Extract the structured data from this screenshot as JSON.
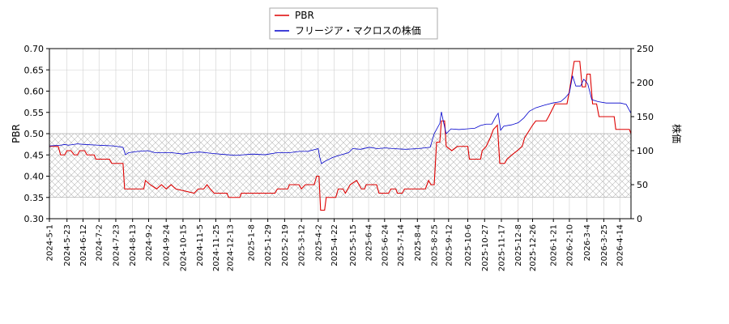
{
  "chart_data": {
    "type": "line",
    "ylabel_left": "PBR",
    "ylabel_right": "株価",
    "ylim_left": [
      0.3,
      0.7
    ],
    "ylim_right": [
      0,
      250
    ],
    "yticks_left": [
      "0.30",
      "0.35",
      "0.40",
      "0.45",
      "0.50",
      "0.55",
      "0.60",
      "0.65",
      "0.70"
    ],
    "yticks_right": [
      "0",
      "50",
      "100",
      "150",
      "200",
      "250"
    ],
    "xlim": [
      "2024-05-01",
      "2026-04-28"
    ],
    "xticks": [
      "2024-5-1",
      "2024-5-23",
      "2024-6-12",
      "2024-7-2",
      "2024-7-23",
      "2024-8-13",
      "2024-9-2",
      "2024-9-24",
      "2024-10-15",
      "2024-11-5",
      "2024-11-25",
      "2024-12-13",
      "2025-1-8",
      "2025-1-29",
      "2025-2-19",
      "2025-3-12",
      "2025-4-2",
      "2025-4-22",
      "2025-5-15",
      "2025-6-4",
      "2025-6-24",
      "2025-7-14",
      "2025-8-4",
      "2025-8-25",
      "2025-9-12",
      "2025-10-6",
      "2025-10-27",
      "2025-11-17",
      "2025-12-8",
      "2025-12-26",
      "2026-1-21",
      "2026-2-10",
      "2026-3-4",
      "2026-3-25",
      "2026-4-14"
    ],
    "hatched_band": [
      0.35,
      0.5
    ],
    "grid": true,
    "legend_position": "top-center",
    "series": [
      {
        "name": "PBR",
        "axis": "left",
        "color": "#dd0000",
        "points": [
          [
            "2024-05-01",
            0.47
          ],
          [
            "2024-05-12",
            0.47
          ],
          [
            "2024-05-15",
            0.45
          ],
          [
            "2024-05-20",
            0.45
          ],
          [
            "2024-05-23",
            0.46
          ],
          [
            "2024-05-28",
            0.46
          ],
          [
            "2024-06-01",
            0.45
          ],
          [
            "2024-06-05",
            0.45
          ],
          [
            "2024-06-08",
            0.46
          ],
          [
            "2024-06-14",
            0.46
          ],
          [
            "2024-06-17",
            0.45
          ],
          [
            "2024-06-26",
            0.45
          ],
          [
            "2024-06-28",
            0.44
          ],
          [
            "2024-07-15",
            0.44
          ],
          [
            "2024-07-18",
            0.43
          ],
          [
            "2024-08-01",
            0.43
          ],
          [
            "2024-08-03",
            0.37
          ],
          [
            "2024-08-27",
            0.37
          ],
          [
            "2024-08-29",
            0.39
          ],
          [
            "2024-09-04",
            0.38
          ],
          [
            "2024-09-12",
            0.37
          ],
          [
            "2024-09-18",
            0.38
          ],
          [
            "2024-09-24",
            0.37
          ],
          [
            "2024-09-30",
            0.38
          ],
          [
            "2024-10-06",
            0.37
          ],
          [
            "2024-10-29",
            0.36
          ],
          [
            "2024-11-03",
            0.37
          ],
          [
            "2024-11-10",
            0.37
          ],
          [
            "2024-11-14",
            0.38
          ],
          [
            "2024-11-18",
            0.37
          ],
          [
            "2024-11-23",
            0.36
          ],
          [
            "2024-12-09",
            0.36
          ],
          [
            "2024-12-11",
            0.35
          ],
          [
            "2024-12-25",
            0.35
          ],
          [
            "2024-12-27",
            0.36
          ],
          [
            "2025-02-07",
            0.36
          ],
          [
            "2025-02-10",
            0.37
          ],
          [
            "2025-02-23",
            0.37
          ],
          [
            "2025-02-25",
            0.38
          ],
          [
            "2025-03-09",
            0.38
          ],
          [
            "2025-03-12",
            0.37
          ],
          [
            "2025-03-17",
            0.38
          ],
          [
            "2025-03-28",
            0.38
          ],
          [
            "2025-03-31",
            0.4
          ],
          [
            "2025-04-03",
            0.4
          ],
          [
            "2025-04-05",
            0.32
          ],
          [
            "2025-04-10",
            0.32
          ],
          [
            "2025-04-12",
            0.35
          ],
          [
            "2025-04-24",
            0.35
          ],
          [
            "2025-04-27",
            0.37
          ],
          [
            "2025-05-03",
            0.37
          ],
          [
            "2025-05-06",
            0.36
          ],
          [
            "2025-05-12",
            0.38
          ],
          [
            "2025-05-20",
            0.39
          ],
          [
            "2025-05-26",
            0.37
          ],
          [
            "2025-05-30",
            0.37
          ],
          [
            "2025-06-01",
            0.38
          ],
          [
            "2025-06-14",
            0.38
          ],
          [
            "2025-06-17",
            0.36
          ],
          [
            "2025-06-29",
            0.36
          ],
          [
            "2025-07-02",
            0.37
          ],
          [
            "2025-07-08",
            0.37
          ],
          [
            "2025-07-10",
            0.36
          ],
          [
            "2025-07-16",
            0.36
          ],
          [
            "2025-07-19",
            0.37
          ],
          [
            "2025-08-14",
            0.37
          ],
          [
            "2025-08-18",
            0.39
          ],
          [
            "2025-08-21",
            0.38
          ],
          [
            "2025-08-25",
            0.38
          ],
          [
            "2025-08-28",
            0.48
          ],
          [
            "2025-09-01",
            0.48
          ],
          [
            "2025-09-03",
            0.53
          ],
          [
            "2025-09-07",
            0.53
          ],
          [
            "2025-09-09",
            0.47
          ],
          [
            "2025-09-16",
            0.46
          ],
          [
            "2025-09-23",
            0.47
          ],
          [
            "2025-10-06",
            0.47
          ],
          [
            "2025-10-08",
            0.44
          ],
          [
            "2025-10-22",
            0.44
          ],
          [
            "2025-10-24",
            0.46
          ],
          [
            "2025-10-29",
            0.47
          ],
          [
            "2025-11-03",
            0.49
          ],
          [
            "2025-11-07",
            0.51
          ],
          [
            "2025-11-12",
            0.52
          ],
          [
            "2025-11-15",
            0.43
          ],
          [
            "2025-11-21",
            0.43
          ],
          [
            "2025-11-24",
            0.44
          ],
          [
            "2025-11-30",
            0.45
          ],
          [
            "2025-12-07",
            0.46
          ],
          [
            "2025-12-13",
            0.47
          ],
          [
            "2025-12-16",
            0.49
          ],
          [
            "2025-12-26",
            0.52
          ],
          [
            "2025-12-30",
            0.53
          ],
          [
            "2026-01-12",
            0.53
          ],
          [
            "2026-01-15",
            0.54
          ],
          [
            "2026-01-23",
            0.57
          ],
          [
            "2026-02-07",
            0.57
          ],
          [
            "2026-02-10",
            0.6
          ],
          [
            "2026-02-16",
            0.67
          ],
          [
            "2026-02-23",
            0.67
          ],
          [
            "2026-02-26",
            0.61
          ],
          [
            "2026-03-02",
            0.61
          ],
          [
            "2026-03-04",
            0.64
          ],
          [
            "2026-03-08",
            0.64
          ],
          [
            "2026-03-11",
            0.57
          ],
          [
            "2026-03-16",
            0.57
          ],
          [
            "2026-03-19",
            0.54
          ],
          [
            "2026-04-07",
            0.54
          ],
          [
            "2026-04-09",
            0.51
          ],
          [
            "2026-04-26",
            0.51
          ],
          [
            "2026-04-28",
            0.5
          ]
        ]
      },
      {
        "name": "フリージア・マクロスの株価",
        "axis": "right",
        "color": "#0000cc",
        "points": [
          [
            "2024-05-01",
            107
          ],
          [
            "2024-05-15",
            108
          ],
          [
            "2024-05-20",
            109
          ],
          [
            "2024-05-25",
            108
          ],
          [
            "2024-06-05",
            110
          ],
          [
            "2024-06-15",
            109
          ],
          [
            "2024-07-01",
            108
          ],
          [
            "2024-07-20",
            107
          ],
          [
            "2024-08-01",
            105
          ],
          [
            "2024-08-04",
            94
          ],
          [
            "2024-08-08",
            97
          ],
          [
            "2024-08-20",
            99
          ],
          [
            "2024-09-01",
            100
          ],
          [
            "2024-09-10",
            97
          ],
          [
            "2024-09-20",
            97
          ],
          [
            "2024-10-01",
            97
          ],
          [
            "2024-10-15",
            95
          ],
          [
            "2024-10-25",
            97
          ],
          [
            "2024-11-05",
            98
          ],
          [
            "2024-11-20",
            96
          ],
          [
            "2024-12-10",
            94
          ],
          [
            "2024-12-20",
            93
          ],
          [
            "2025-01-10",
            95
          ],
          [
            "2025-01-25",
            94
          ],
          [
            "2025-02-10",
            97
          ],
          [
            "2025-02-25",
            97
          ],
          [
            "2025-03-10",
            99
          ],
          [
            "2025-03-20",
            99
          ],
          [
            "2025-04-02",
            103
          ],
          [
            "2025-04-04",
            90
          ],
          [
            "2025-04-06",
            81
          ],
          [
            "2025-04-10",
            84
          ],
          [
            "2025-04-20",
            90
          ],
          [
            "2025-05-01",
            94
          ],
          [
            "2025-05-10",
            97
          ],
          [
            "2025-05-15",
            103
          ],
          [
            "2025-05-25",
            102
          ],
          [
            "2025-06-05",
            105
          ],
          [
            "2025-06-15",
            103
          ],
          [
            "2025-06-25",
            104
          ],
          [
            "2025-07-05",
            103
          ],
          [
            "2025-07-20",
            102
          ],
          [
            "2025-08-05",
            103
          ],
          [
            "2025-08-20",
            105
          ],
          [
            "2025-08-25",
            125
          ],
          [
            "2025-09-01",
            140
          ],
          [
            "2025-09-03",
            157
          ],
          [
            "2025-09-06",
            140
          ],
          [
            "2025-09-09",
            125
          ],
          [
            "2025-09-15",
            132
          ],
          [
            "2025-09-25",
            131
          ],
          [
            "2025-10-05",
            132
          ],
          [
            "2025-10-15",
            133
          ],
          [
            "2025-10-22",
            137
          ],
          [
            "2025-10-29",
            139
          ],
          [
            "2025-11-05",
            139
          ],
          [
            "2025-11-10",
            150
          ],
          [
            "2025-11-13",
            155
          ],
          [
            "2025-11-16",
            130
          ],
          [
            "2025-11-20",
            136
          ],
          [
            "2025-11-30",
            138
          ],
          [
            "2025-12-08",
            141
          ],
          [
            "2025-12-15",
            148
          ],
          [
            "2025-12-22",
            158
          ],
          [
            "2025-12-30",
            163
          ],
          [
            "2026-01-10",
            167
          ],
          [
            "2026-01-20",
            170
          ],
          [
            "2026-01-30",
            172
          ],
          [
            "2026-02-05",
            178
          ],
          [
            "2026-02-10",
            185
          ],
          [
            "2026-02-14",
            210
          ],
          [
            "2026-02-18",
            195
          ],
          [
            "2026-02-24",
            195
          ],
          [
            "2026-02-28",
            205
          ],
          [
            "2026-03-05",
            198
          ],
          [
            "2026-03-10",
            175
          ],
          [
            "2026-03-18",
            172
          ],
          [
            "2026-03-28",
            170
          ],
          [
            "2026-04-05",
            170
          ],
          [
            "2026-04-15",
            170
          ],
          [
            "2026-04-22",
            168
          ],
          [
            "2026-04-28",
            155
          ]
        ]
      }
    ]
  }
}
